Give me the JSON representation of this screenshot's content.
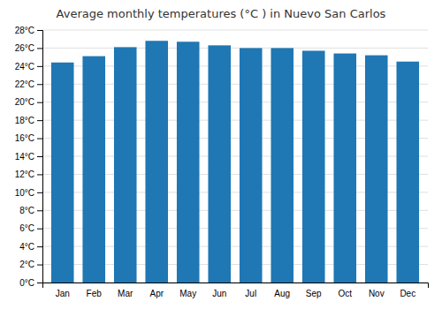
{
  "chart_data": {
    "type": "bar",
    "title": "Average monthly temperatures (°C ) in Nuevo San Carlos",
    "categories": [
      "Jan",
      "Feb",
      "Mar",
      "Apr",
      "May",
      "Jun",
      "Jul",
      "Aug",
      "Sep",
      "Oct",
      "Nov",
      "Dec"
    ],
    "values": [
      24.4,
      25.1,
      26.1,
      26.8,
      26.7,
      26.3,
      26.0,
      26.0,
      25.7,
      25.4,
      25.2,
      24.5
    ],
    "ylim": [
      0,
      28
    ],
    "yticks": [
      {
        "value": 0,
        "label": "0°C"
      },
      {
        "value": 2,
        "label": "2°C"
      },
      {
        "value": 4,
        "label": "4°C"
      },
      {
        "value": 6,
        "label": "6°C"
      },
      {
        "value": 8,
        "label": "8°C"
      },
      {
        "value": 10,
        "label": "10°C"
      },
      {
        "value": 12,
        "label": "12°C"
      },
      {
        "value": 14,
        "label": "14°C"
      },
      {
        "value": 16,
        "label": "16°C"
      },
      {
        "value": 18,
        "label": "18°C"
      },
      {
        "value": 20,
        "label": "20°C"
      },
      {
        "value": 22,
        "label": "22°C"
      },
      {
        "value": 24,
        "label": "24°C"
      },
      {
        "value": 26,
        "label": "26°C"
      },
      {
        "value": 28,
        "label": "28°C"
      }
    ],
    "grid": true
  }
}
